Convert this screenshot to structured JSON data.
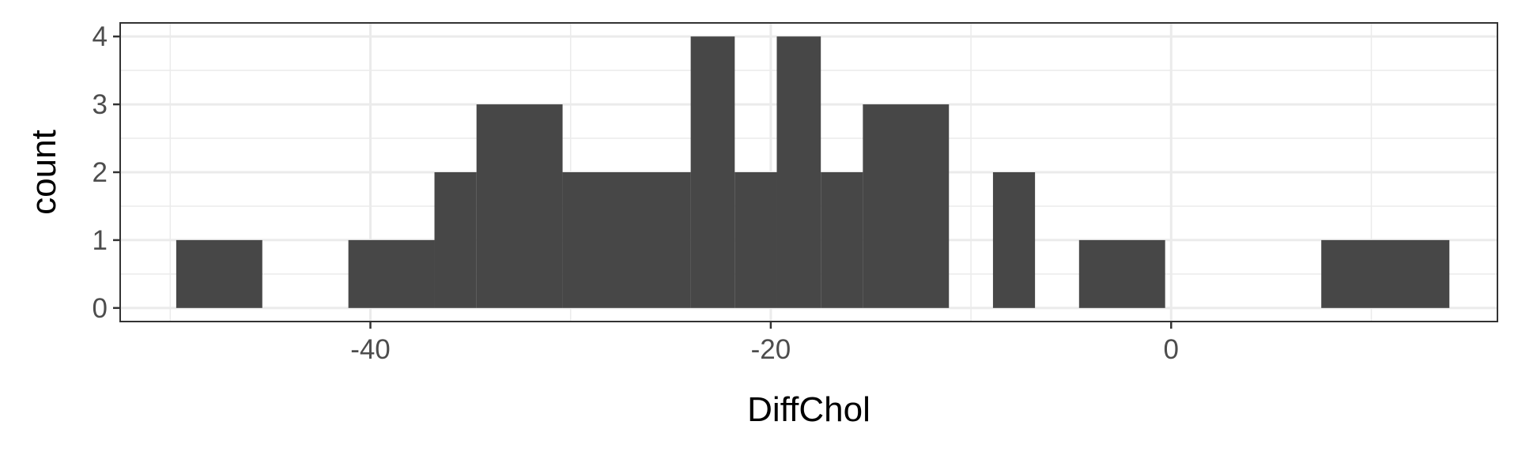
{
  "chart_data": {
    "type": "bar",
    "title": "",
    "xlabel": "DiffChol",
    "ylabel": "count",
    "xlim": [
      -52.5,
      16.3
    ],
    "ylim": [
      -0.2,
      4.2
    ],
    "x_ticks": [
      -40,
      -20,
      0
    ],
    "x_tick_labels": [
      "-40",
      "-20",
      "0"
    ],
    "y_ticks": [
      0,
      1,
      2,
      3,
      4
    ],
    "y_tick_labels": [
      "0",
      "1",
      "2",
      "3",
      "4"
    ],
    "grid": true,
    "bin_width": 2.15,
    "bins": [
      {
        "x_start": -49.7,
        "x_end": -45.4,
        "count": 1
      },
      {
        "x_start": -41.1,
        "x_end": -36.8,
        "count": 1
      },
      {
        "x_start": -36.8,
        "x_end": -34.7,
        "count": 2
      },
      {
        "x_start": -34.7,
        "x_end": -30.4,
        "count": 3
      },
      {
        "x_start": -30.4,
        "x_end": -24.0,
        "count": 2
      },
      {
        "x_start": -24.0,
        "x_end": -21.8,
        "count": 4
      },
      {
        "x_start": -21.8,
        "x_end": -19.7,
        "count": 2
      },
      {
        "x_start": -19.7,
        "x_end": -17.5,
        "count": 4
      },
      {
        "x_start": -17.5,
        "x_end": -15.4,
        "count": 2
      },
      {
        "x_start": -15.4,
        "x_end": -11.1,
        "count": 3
      },
      {
        "x_start": -8.9,
        "x_end": -6.8,
        "count": 2
      },
      {
        "x_start": -4.6,
        "x_end": -0.3,
        "count": 1
      },
      {
        "x_start": 7.5,
        "x_end": 13.9,
        "count": 1
      }
    ]
  }
}
